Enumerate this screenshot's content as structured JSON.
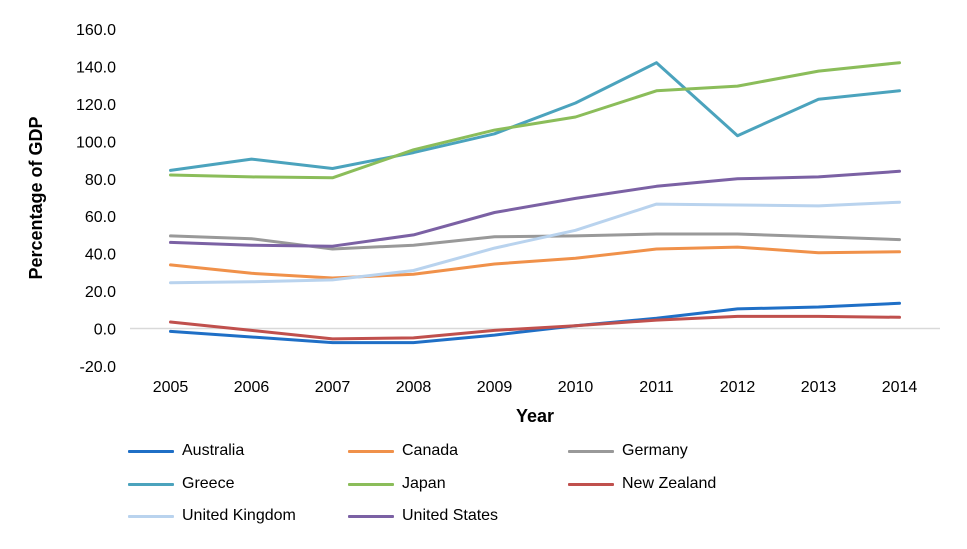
{
  "chart_data": {
    "type": "line",
    "title": "",
    "xlabel": "Year",
    "ylabel": "Percentage of GDP",
    "x": [
      "2005",
      "2006",
      "2007",
      "2008",
      "2009",
      "2010",
      "2011",
      "2012",
      "2013",
      "2014"
    ],
    "yticks": [
      "160.0",
      "140.0",
      "120.0",
      "100.0",
      "80.0",
      "60.0",
      "40.0",
      "20.0",
      "0.0",
      "-20.0"
    ],
    "ylim": [
      -20,
      160
    ],
    "grid": false,
    "legend_position": "bottom",
    "series": [
      {
        "name": "Australia",
        "color": "#1f6fc6",
        "values": [
          -1.5,
          -4.5,
          -7.5,
          -7.5,
          -3.5,
          1.5,
          5.5,
          10.5,
          11.5,
          13.5
        ]
      },
      {
        "name": "Canada",
        "color": "#f0914a",
        "values": [
          34.0,
          29.5,
          27.0,
          29.0,
          34.5,
          37.5,
          42.5,
          43.5,
          40.5,
          41.0
        ]
      },
      {
        "name": "Germany",
        "color": "#999999",
        "values": [
          49.5,
          48.0,
          42.5,
          44.5,
          49.0,
          49.5,
          50.5,
          50.5,
          49.0,
          47.5
        ]
      },
      {
        "name": "Greece",
        "color": "#4ba3bd",
        "values": [
          84.5,
          90.5,
          85.5,
          94.0,
          104.0,
          120.5,
          142.0,
          103.0,
          122.5,
          127.0
        ]
      },
      {
        "name": "Japan",
        "color": "#8bbd5a",
        "values": [
          82.0,
          81.0,
          80.5,
          95.5,
          106.0,
          113.0,
          127.0,
          129.5,
          137.5,
          142.0
        ]
      },
      {
        "name": "New Zealand",
        "color": "#c0504d",
        "values": [
          3.5,
          -1.0,
          -5.5,
          -5.0,
          -1.0,
          1.5,
          4.5,
          6.5,
          6.5,
          6.0
        ]
      },
      {
        "name": "United Kingdom",
        "color": "#b9d3ee",
        "values": [
          24.5,
          25.0,
          26.0,
          31.0,
          43.0,
          52.5,
          66.5,
          66.0,
          65.5,
          67.5
        ]
      },
      {
        "name": "United States",
        "color": "#7b61a4",
        "values": [
          46.0,
          44.5,
          44.0,
          50.0,
          62.0,
          69.5,
          76.0,
          80.0,
          81.0,
          84.0
        ]
      }
    ]
  }
}
